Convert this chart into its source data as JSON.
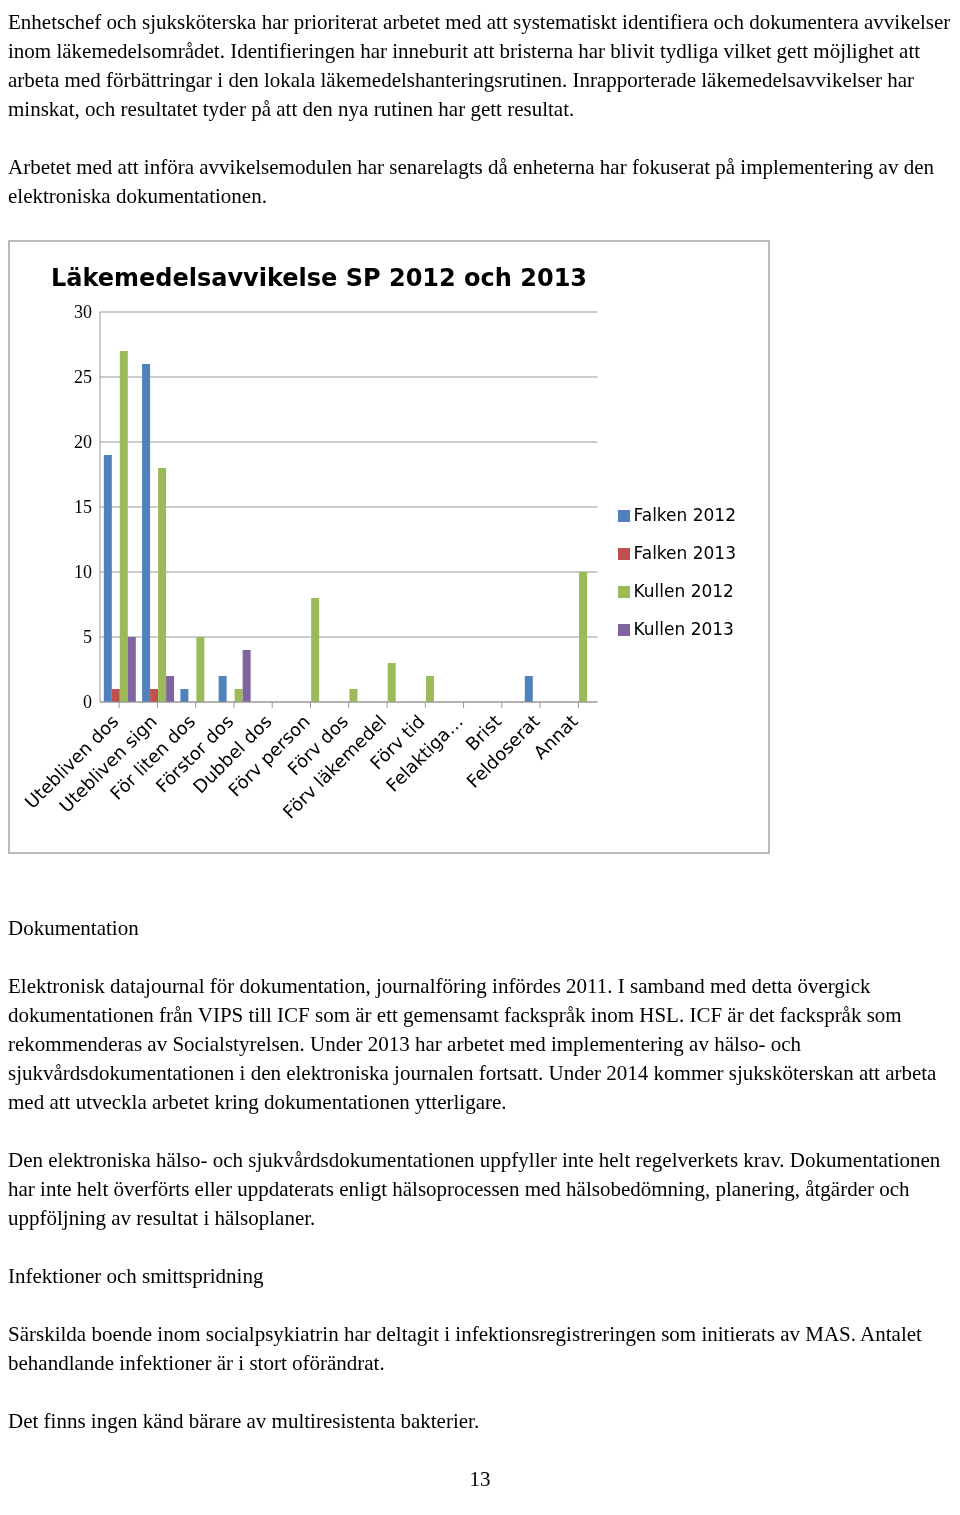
{
  "chart_data": {
    "type": "bar",
    "title": "Läkemedelsavvikelse SP 2012 och 2013",
    "categories": [
      "Utebliven dos",
      "Utebliven sign",
      "För liten dos",
      "Förstor dos",
      "Dubbel dos",
      "Förv person",
      "Förv dos",
      "Förv läkemedel",
      "Förv tid",
      "Felaktiga…",
      "Brist",
      "Feldoserat",
      "Annat"
    ],
    "series": [
      {
        "name": "Falken 2012",
        "color": "#4f81bd",
        "values": [
          19,
          26,
          1,
          2,
          null,
          null,
          null,
          null,
          null,
          null,
          null,
          2,
          null
        ]
      },
      {
        "name": "Falken 2013",
        "color": "#c0504d",
        "values": [
          1,
          1,
          null,
          null,
          null,
          null,
          null,
          null,
          null,
          null,
          null,
          null,
          null
        ]
      },
      {
        "name": "Kullen 2012",
        "color": "#9bbb59",
        "values": [
          27,
          18,
          5,
          1,
          null,
          8,
          1,
          3,
          2,
          null,
          null,
          null,
          10
        ]
      },
      {
        "name": "Kullen 2013",
        "color": "#8064a2",
        "values": [
          5,
          2,
          null,
          4,
          null,
          null,
          null,
          null,
          null,
          null,
          null,
          null,
          null
        ]
      }
    ],
    "ylim": [
      0,
      30
    ],
    "yticks": [
      0,
      5,
      10,
      15,
      20,
      25,
      30
    ],
    "grid": "y",
    "legend": "right",
    "annotations": [
      "Enhetschef och sjuksköterska har prioriterat arbetet med att systematiskt identifiera och dokumentera avvikelser inom läkemedelsområdet. Identifieringen har inneburit att bristerna har blivit tydliga vilket gett möjlighet att arbeta med förbättringar i den lokala läkemedelshanteringsrutinen. Inrapporterade läkemedelsavvikelser har minskat, och resultatet tyder på att den nya rutinen har gett resultat.",
      "Arbetet med att införa avvikelsemodulen har senarelagts då enheterna har fokuserat på implementering av den elektroniska dokumentationen.",
      "Dokumentation",
      "Elektronisk datajournal för dokumentation, journalföring infördes 2011. I samband med detta övergick dokumentationen från VIPS till ICF som är ett gemensamt fackspråk inom HSL. ICF är det fackspråk som rekommenderas av Socialstyrelsen. Under 2013 har arbetet med implementering av hälso- och sjukvårdsdokumentationen i den elektroniska journalen fortsatt. Under 2014 kommer sjuksköterskan att arbeta med att utveckla arbetet kring dokumentationen ytterligare.",
      "Den elektroniska hälso- och sjukvårdsdokumentationen uppfyller inte helt regelverkets krav. Dokumentationen har inte helt överförts eller uppdaterats enligt hälsoprocessen med hälsobedömning, planering, åtgärder och uppföljning av resultat i hälsoplaner.",
      "Infektioner och smittspridning",
      "Särskilda boende inom socialpsykiatrin har deltagit i infektionsregistreringen som initierats av MAS. Antalet behandlande infektioner är i stort oförändrat.",
      "Det finns ingen känd bärare av multiresistenta bakterier.",
      "13"
    ]
  }
}
